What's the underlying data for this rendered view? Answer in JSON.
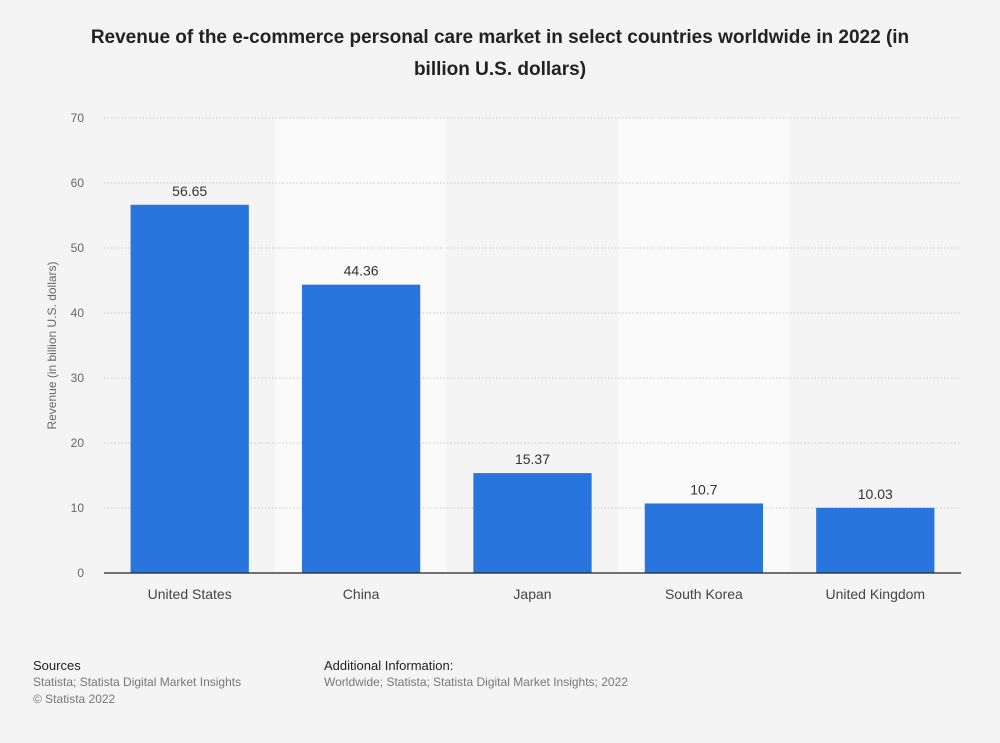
{
  "chart_data": {
    "type": "bar",
    "title": "Revenue of the e-commerce personal care market in select countries worldwide in 2022 (in billion U.S. dollars)",
    "xlabel": "",
    "ylabel": "Revenue (in billion U.S. dollars)",
    "categories": [
      "United States",
      "China",
      "Japan",
      "South Korea",
      "United Kingdom"
    ],
    "values": [
      56.65,
      44.36,
      15.37,
      10.7,
      10.03
    ],
    "value_labels": [
      "56.65",
      "44.36",
      "15.37",
      "10.7",
      "10.03"
    ],
    "ylim": [
      0,
      70
    ],
    "yticks": [
      0,
      10,
      20,
      30,
      40,
      50,
      60,
      70
    ],
    "grid": true,
    "legend": "none",
    "bar_color": "#2876dd"
  },
  "footer": {
    "sources_heading": "Sources",
    "sources_line1": "Statista; Statista Digital Market Insights",
    "sources_line2": "© Statista 2022",
    "additional_heading": "Additional Information:",
    "additional_line1": "Worldwide; Statista; Statista Digital Market Insights; 2022"
  }
}
